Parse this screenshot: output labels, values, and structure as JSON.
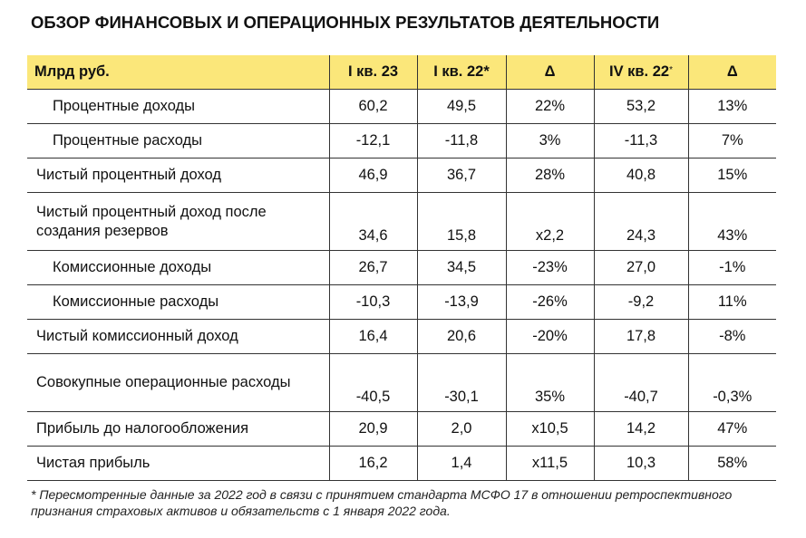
{
  "title": "ОБЗОР ФИНАНСОВЫХ И ОПЕРАЦИОННЫХ РЕЗУЛЬТАТОВ ДЕЯТЕЛЬНОСТИ",
  "table": {
    "header_bg": "#fbe77a",
    "headers": [
      "Млрд руб.",
      "I кв. 23",
      "I кв. 22*",
      "Δ",
      "IV кв. 22",
      "Δ"
    ],
    "header_sup": "*",
    "rows": [
      {
        "label": "Процентные доходы",
        "indent": true,
        "values": [
          "60,2",
          "49,5",
          "22%",
          "53,2",
          "13%"
        ]
      },
      {
        "label": "Процентные расходы",
        "indent": true,
        "values": [
          "-12,1",
          "-11,8",
          "3%",
          "-11,3",
          "7%"
        ]
      },
      {
        "label": "Чистый процентный доход",
        "indent": false,
        "values": [
          "46,9",
          "36,7",
          "28%",
          "40,8",
          "15%"
        ]
      },
      {
        "label": "Чистый процентный доход после создания резервов",
        "indent": false,
        "values": [
          "34,6",
          "15,8",
          "x2,2",
          "24,3",
          "43%"
        ]
      },
      {
        "label": "Комиссионные доходы",
        "indent": true,
        "values": [
          "26,7",
          "34,5",
          "-23%",
          "27,0",
          "-1%"
        ]
      },
      {
        "label": "Комиссионные расходы",
        "indent": true,
        "values": [
          "-10,3",
          "-13,9",
          "-26%",
          "-9,2",
          "11%"
        ]
      },
      {
        "label": "Чистый комиссионный доход",
        "indent": false,
        "values": [
          "16,4",
          "20,6",
          "-20%",
          "17,8",
          "-8%"
        ]
      },
      {
        "label": "Совокупные операционные расходы",
        "indent": false,
        "values": [
          "-40,5",
          "-30,1",
          "35%",
          "-40,7",
          "-0,3%"
        ]
      },
      {
        "label": "Прибыль до налогообложения",
        "indent": false,
        "values": [
          "20,9",
          "2,0",
          "x10,5",
          "14,2",
          "47%"
        ]
      },
      {
        "label": "Чистая прибыль",
        "indent": false,
        "values": [
          "16,2",
          "1,4",
          "x11,5",
          "10,3",
          "58%"
        ]
      }
    ]
  },
  "footnote": "* Пересмотренные данные за 2022 год в связи с принятием стандарта МСФО 17 в отношении ретроспективного признания страховых активов и обязательств с 1 января 2022 года."
}
